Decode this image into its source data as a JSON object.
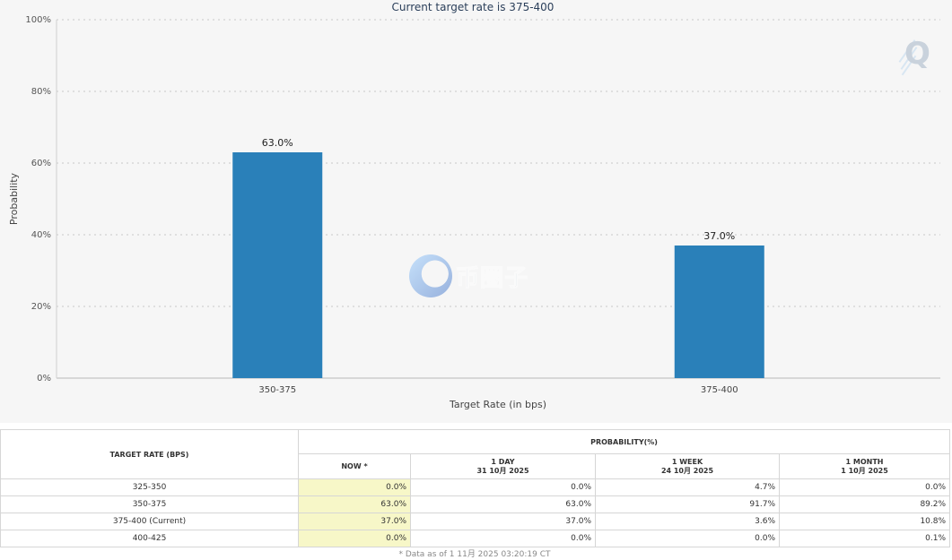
{
  "chart_data": {
    "type": "bar",
    "title": "Current target rate is 375-400",
    "xlabel": "Target Rate (in bps)",
    "ylabel": "Probability",
    "categories": [
      "350-375",
      "375-400"
    ],
    "values": [
      63.0,
      37.0
    ],
    "data_labels": [
      "63.0%",
      "37.0%"
    ],
    "ylim": [
      0,
      100
    ],
    "yticks": [
      0,
      20,
      40,
      60,
      80,
      100
    ],
    "ytick_labels": [
      "0%",
      "20%",
      "40%",
      "60%",
      "80%",
      "100%"
    ],
    "bar_color": "#2a80b9",
    "grid": true,
    "legend": "none"
  },
  "watermark": {
    "text": "币圈子"
  },
  "logo": {
    "letter": "Q"
  },
  "table": {
    "target_header": "TARGET RATE (BPS)",
    "probability_header": "PROBABILITY(%)",
    "columns": [
      {
        "label": "NOW *",
        "date": ""
      },
      {
        "label": "1 DAY",
        "date": "31 10月 2025"
      },
      {
        "label": "1 WEEK",
        "date": "24 10月 2025"
      },
      {
        "label": "1 MONTH",
        "date": "1 10月 2025"
      }
    ],
    "rows": [
      {
        "rate": "325-350",
        "now": "0.0%",
        "day": "0.0%",
        "week": "4.7%",
        "month": "0.0%"
      },
      {
        "rate": "350-375",
        "now": "63.0%",
        "day": "63.0%",
        "week": "91.7%",
        "month": "89.2%"
      },
      {
        "rate": "375-400 (Current)",
        "now": "37.0%",
        "day": "37.0%",
        "week": "3.6%",
        "month": "10.8%"
      },
      {
        "rate": "400-425",
        "now": "0.0%",
        "day": "0.0%",
        "week": "0.0%",
        "month": "0.1%"
      }
    ],
    "footnote": "* Data as of 1 11月 2025 03:20:19 CT"
  }
}
